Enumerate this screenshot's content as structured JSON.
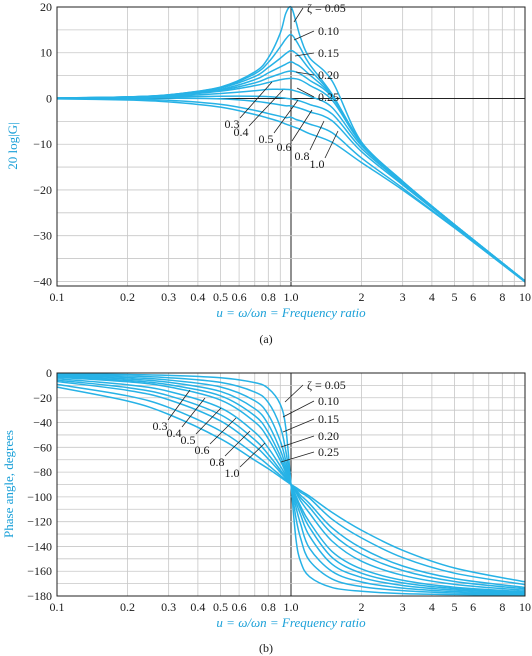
{
  "colors": {
    "curve": "#27b2e6",
    "axis_label": "#1aa0d8",
    "grid": "#c7c7c7"
  },
  "chart_data": [
    {
      "type": "line",
      "panel_label": "(a)",
      "ylabel": "20 log|G|",
      "xlabel": "u = ω/ωn = Frequency ratio",
      "xscale": "log",
      "xlim": [
        0.1,
        10
      ],
      "ylim": [
        -41,
        20
      ],
      "grid": true,
      "x_ticks": [
        0.1,
        0.2,
        0.3,
        0.4,
        0.5,
        0.6,
        0.8,
        1.0,
        2,
        3,
        4,
        5,
        6,
        8,
        10
      ],
      "x_tick_labels": [
        "0.1",
        "0.2",
        "0.3",
        "0.4",
        "0.5",
        "0.6",
        "0.8",
        "1.0",
        "2",
        "3",
        "4",
        "5",
        "6",
        "8",
        "10"
      ],
      "y_ticks": [
        20,
        10,
        0,
        -10,
        -20,
        -30,
        -40
      ],
      "y_tick_labels": [
        "20",
        "10",
        "0",
        "−10",
        "−20",
        "−30",
        "−40"
      ],
      "zeta_labels_upper": [
        "ζ = 0.05",
        "0.10",
        "0.15",
        "0.20",
        "0.25"
      ],
      "zeta_labels_lower": [
        "0.3",
        "0.4",
        "0.5",
        "0.6",
        "0.8",
        "1.0"
      ],
      "series": [
        {
          "zeta": 0.05,
          "x": [
            0.1,
            0.2,
            0.3,
            0.5,
            0.7,
            0.8,
            0.9,
            0.95,
            1.0,
            1.05,
            1.1,
            1.2,
            1.5,
            2,
            3,
            5,
            10
          ],
          "y": [
            0.09,
            0.35,
            0.82,
            2.5,
            5.8,
            8.9,
            14.3,
            18.6,
            20.0,
            16.8,
            13.2,
            8.9,
            3.8,
            -9.5,
            -18.1,
            -27.6,
            -39.9
          ]
        },
        {
          "zeta": 0.1,
          "x": [
            0.1,
            0.2,
            0.3,
            0.5,
            0.7,
            0.8,
            0.9,
            0.95,
            1.0,
            1.05,
            1.1,
            1.2,
            1.5,
            2,
            3,
            5,
            10
          ],
          "y": [
            0.09,
            0.34,
            0.8,
            2.4,
            5.4,
            7.9,
            11.3,
            13.0,
            14.0,
            12.7,
            10.9,
            7.5,
            0.9,
            -9.6,
            -18.1,
            -27.6,
            -39.9
          ]
        },
        {
          "zeta": 0.15,
          "x": [
            0.1,
            0.2,
            0.3,
            0.5,
            0.7,
            0.8,
            0.9,
            0.95,
            1.0,
            1.05,
            1.1,
            1.2,
            1.5,
            2,
            3,
            5,
            10
          ],
          "y": [
            0.08,
            0.33,
            0.77,
            2.3,
            4.8,
            6.8,
            8.8,
            9.8,
            10.5,
            9.9,
            8.9,
            6.4,
            0.7,
            -9.7,
            -18.2,
            -27.6,
            -39.9
          ]
        },
        {
          "zeta": 0.2,
          "x": [
            0.1,
            0.2,
            0.3,
            0.5,
            0.7,
            0.8,
            0.9,
            0.95,
            1.0,
            1.05,
            1.1,
            1.2,
            1.5,
            2,
            3,
            5,
            10
          ],
          "y": [
            0.08,
            0.32,
            0.72,
            2.0,
            4.1,
            5.6,
            6.9,
            7.5,
            8.0,
            7.5,
            6.9,
            5.2,
            0.5,
            -9.7,
            -18.2,
            -27.6,
            -39.9
          ]
        },
        {
          "zeta": 0.25,
          "x": [
            0.1,
            0.2,
            0.3,
            0.5,
            0.7,
            0.8,
            0.9,
            0.95,
            1.0,
            1.05,
            1.1,
            1.2,
            1.5,
            2,
            3,
            5,
            10
          ],
          "y": [
            0.08,
            0.3,
            0.67,
            1.8,
            3.4,
            4.5,
            5.4,
            5.8,
            6.0,
            5.8,
            5.3,
            4.0,
            0.3,
            -9.8,
            -18.2,
            -27.6,
            -39.9
          ]
        },
        {
          "zeta": 0.3,
          "x": [
            0.1,
            0.2,
            0.3,
            0.5,
            0.7,
            0.8,
            0.9,
            0.95,
            1.0,
            1.05,
            1.1,
            1.2,
            1.5,
            2,
            3,
            5,
            10
          ],
          "y": [
            0.07,
            0.28,
            0.61,
            1.6,
            2.8,
            3.5,
            4.1,
            4.3,
            4.4,
            4.3,
            4.0,
            2.9,
            -0.4,
            -9.9,
            -18.3,
            -27.6,
            -39.9
          ]
        },
        {
          "zeta": 0.4,
          "x": [
            0.1,
            0.2,
            0.3,
            0.5,
            0.7,
            0.8,
            0.9,
            0.95,
            1.0,
            1.05,
            1.1,
            1.2,
            1.5,
            2,
            3,
            5,
            10
          ],
          "y": [
            0.05,
            0.22,
            0.47,
            1.1,
            1.7,
            2.0,
            2.0,
            2.0,
            1.9,
            1.6,
            1.3,
            0.5,
            -2.0,
            -10.3,
            -18.4,
            -27.7,
            -39.9
          ]
        },
        {
          "zeta": 0.5,
          "x": [
            0.1,
            0.2,
            0.3,
            0.5,
            0.7,
            0.8,
            0.9,
            0.95,
            1.0,
            1.05,
            1.1,
            1.2,
            1.5,
            2,
            3,
            5,
            10
          ],
          "y": [
            0.03,
            0.14,
            0.3,
            0.5,
            0.5,
            0.4,
            0.2,
            0.05,
            -0.1,
            -0.3,
            -0.6,
            -1.3,
            -3.4,
            -10.9,
            -18.6,
            -27.8,
            -40.0
          ]
        },
        {
          "zeta": 0.6,
          "x": [
            0.1,
            0.2,
            0.3,
            0.5,
            0.7,
            0.8,
            0.9,
            0.95,
            1.0,
            1.05,
            1.1,
            1.2,
            1.5,
            2,
            3,
            5,
            10
          ],
          "y": [
            0.01,
            0.04,
            0.07,
            -0.1,
            -0.6,
            -1.0,
            -1.4,
            -1.6,
            -1.6,
            -1.9,
            -2.2,
            -2.9,
            -4.9,
            -11.6,
            -18.9,
            -27.9,
            -40.0
          ]
        },
        {
          "zeta": 0.8,
          "x": [
            0.1,
            0.2,
            0.3,
            0.5,
            0.7,
            0.8,
            0.9,
            0.95,
            1.0,
            1.05,
            1.1,
            1.2,
            1.5,
            2,
            3,
            5,
            10
          ],
          "y": [
            -0.02,
            -0.16,
            -0.4,
            -1.3,
            -2.6,
            -3.3,
            -3.9,
            -4.2,
            -4.1,
            -4.6,
            -4.9,
            -5.6,
            -7.5,
            -13.0,
            -19.6,
            -28.2,
            -40.1
          ]
        },
        {
          "zeta": 1.0,
          "x": [
            0.1,
            0.2,
            0.3,
            0.5,
            0.7,
            0.8,
            0.9,
            0.95,
            1.0,
            1.05,
            1.1,
            1.2,
            1.5,
            2,
            3,
            5,
            10
          ],
          "y": [
            -0.09,
            -0.34,
            -0.75,
            -1.9,
            -3.5,
            -4.3,
            -5.1,
            -5.6,
            -6.0,
            -6.4,
            -6.8,
            -7.7,
            -9.6,
            -14.0,
            -20.0,
            -28.3,
            -40.1
          ]
        }
      ]
    },
    {
      "type": "line",
      "panel_label": "(b)",
      "ylabel": "Phase angle, degrees",
      "xlabel": "u = ω/ωn = Frequency ratio",
      "xscale": "log",
      "xlim": [
        0.1,
        10
      ],
      "ylim": [
        -180,
        0
      ],
      "grid": true,
      "x_ticks": [
        0.1,
        0.2,
        0.3,
        0.4,
        0.5,
        0.6,
        0.8,
        1.0,
        2,
        3,
        4,
        5,
        6,
        8,
        10
      ],
      "x_tick_labels": [
        "0.1",
        "0.2",
        "0.3",
        "0.4",
        "0.5",
        "0.6",
        "0.8",
        "1.0",
        "2",
        "3",
        "4",
        "5",
        "6",
        "8",
        "10"
      ],
      "y_ticks": [
        0,
        -20,
        -40,
        -60,
        -80,
        -100,
        -120,
        -140,
        -160,
        -180
      ],
      "y_tick_labels": [
        "0",
        "−20",
        "−40",
        "−60",
        "−80",
        "−100",
        "−120",
        "−140",
        "−160",
        "−180"
      ],
      "zeta_labels_upper": [
        "ζ = 0.05",
        "0.10",
        "0.15",
        "0.20",
        "0.25"
      ],
      "zeta_labels_lower": [
        "0.3",
        "0.4",
        "0.5",
        "0.6",
        "0.8",
        "1.0"
      ],
      "series": [
        {
          "zeta": 0.05,
          "x": [
            0.1,
            0.2,
            0.3,
            0.5,
            0.7,
            0.8,
            0.9,
            0.95,
            1.0,
            1.05,
            1.1,
            1.2,
            1.5,
            2,
            3,
            5,
            10
          ],
          "y": [
            -0.6,
            -1.2,
            -1.9,
            -3.8,
            -7.8,
            -12.5,
            -25.3,
            -44.3,
            -90,
            -134.1,
            -152.4,
            -164.4,
            -173.2,
            -176.2,
            -178.1,
            -178.8,
            -179.4
          ]
        },
        {
          "zeta": 0.1,
          "x": [
            0.1,
            0.2,
            0.3,
            0.5,
            0.7,
            0.8,
            0.9,
            0.95,
            1.0,
            1.05,
            1.1,
            1.2,
            1.5,
            2,
            3,
            5,
            10
          ],
          "y": [
            -1.2,
            -2.4,
            -3.8,
            -7.6,
            -15.4,
            -23.9,
            -43.5,
            -62.9,
            -90,
            -117.0,
            -133.6,
            -151.5,
            -166.3,
            -172.4,
            -175.7,
            -177.6,
            -178.8
          ]
        },
        {
          "zeta": 0.15,
          "x": [
            0.1,
            0.2,
            0.3,
            0.5,
            0.7,
            0.8,
            0.9,
            0.95,
            1.0,
            1.05,
            1.1,
            1.2,
            1.5,
            2,
            3,
            5,
            10
          ],
          "y": [
            -1.7,
            -3.6,
            -5.7,
            -11.3,
            -22.4,
            -33.7,
            -54.9,
            -71.0,
            -90,
            -108.3,
            -122.1,
            -141.5,
            -160.2,
            -168.7,
            -173.6,
            -176.4,
            -178.3
          ]
        },
        {
          "zeta": 0.2,
          "x": [
            0.1,
            0.2,
            0.3,
            0.5,
            0.7,
            0.8,
            0.9,
            0.95,
            1.0,
            1.05,
            1.1,
            1.2,
            1.5,
            2,
            3,
            5,
            10
          ],
          "y": [
            -2.3,
            -4.8,
            -7.5,
            -14.9,
            -28.8,
            -41.6,
            -62.1,
            -75.6,
            -90,
            -103.9,
            -114.6,
            -131.6,
            -154.4,
            -165.0,
            -171.5,
            -175.2,
            -177.7
          ]
        },
        {
          "zeta": 0.25,
          "x": [
            0.1,
            0.2,
            0.3,
            0.5,
            0.7,
            0.8,
            0.9,
            0.95,
            1.0,
            1.05,
            1.1,
            1.2,
            1.5,
            2,
            3,
            5,
            10
          ],
          "y": [
            -2.9,
            -6.0,
            -9.4,
            -18.4,
            -34.5,
            -48.0,
            -67.0,
            -78.6,
            -90,
            -100.7,
            -110.2,
            -124.7,
            -149.0,
            -161.6,
            -169.4,
            -174.0,
            -177.1
          ]
        },
        {
          "zeta": 0.3,
          "x": [
            0.1,
            0.2,
            0.3,
            0.5,
            0.7,
            0.8,
            0.9,
            0.95,
            1.0,
            1.05,
            1.1,
            1.2,
            1.5,
            2,
            3,
            5,
            10
          ],
          "y": [
            -3.5,
            -7.1,
            -11.2,
            -21.8,
            -39.5,
            -53.1,
            -70.6,
            -80.5,
            -90,
            -99.2,
            -107.7,
            -120.4,
            -144.2,
            -158.2,
            -167.3,
            -172.9,
            -176.5
          ]
        },
        {
          "zeta": 0.4,
          "x": [
            0.1,
            0.2,
            0.3,
            0.5,
            0.7,
            0.8,
            0.9,
            0.95,
            1.0,
            1.05,
            1.1,
            1.2,
            1.5,
            2,
            3,
            5,
            10
          ],
          "y": [
            -4.6,
            -9.5,
            -14.8,
            -28.1,
            -47.8,
            -60.6,
            -75.1,
            -82.8,
            -90,
            -96.4,
            -103.3,
            -113.2,
            -135.8,
            -151.9,
            -163.3,
            -170.6,
            -175.4
          ]
        },
        {
          "zeta": 0.5,
          "x": [
            0.1,
            0.2,
            0.3,
            0.5,
            0.7,
            0.8,
            0.9,
            0.95,
            1.0,
            1.05,
            1.1,
            1.2,
            1.5,
            2,
            3,
            5,
            10
          ],
          "y": [
            -5.8,
            -11.8,
            -18.3,
            -33.7,
            -53.9,
            -65.8,
            -78.3,
            -84.3,
            -90,
            -95.3,
            -100.8,
            -108.5,
            -129.8,
            -146.3,
            -159.4,
            -168.3,
            -174.2
          ]
        },
        {
          "zeta": 0.6,
          "x": [
            0.1,
            0.2,
            0.3,
            0.5,
            0.7,
            0.8,
            0.9,
            0.95,
            1.0,
            1.05,
            1.1,
            1.2,
            1.5,
            2,
            3,
            5,
            10
          ],
          "y": [
            -6.9,
            -14.0,
            -21.6,
            -38.7,
            -58.8,
            -69.4,
            -80.1,
            -85.2,
            -90,
            -94.3,
            -98.8,
            -105.4,
            -125.1,
            -141.3,
            -155.8,
            -166.0,
            -173.1
          ]
        },
        {
          "zeta": 0.8,
          "x": [
            0.1,
            0.2,
            0.3,
            0.5,
            0.7,
            0.8,
            0.9,
            0.95,
            1.0,
            1.05,
            1.1,
            1.2,
            1.5,
            2,
            3,
            5,
            10
          ],
          "y": [
            -9.2,
            -18.4,
            -27.8,
            -46.8,
            -65.7,
            -74.4,
            -82.7,
            -86.4,
            -90,
            -93.0,
            -96.4,
            -101.0,
            -118.1,
            -133.1,
            -149.0,
            -161.6,
            -170.8
          ]
        },
        {
          "zeta": 1.0,
          "x": [
            0.1,
            0.2,
            0.3,
            0.5,
            0.7,
            0.8,
            0.9,
            0.95,
            1.0,
            1.05,
            1.1,
            1.2,
            1.5,
            2,
            3,
            5,
            10
          ],
          "y": [
            -11.4,
            -22.6,
            -33.4,
            -53.1,
            -70.4,
            -77.3,
            -84.0,
            -87.1,
            -90,
            -92.4,
            -95.0,
            -99.4,
            -112.6,
            -126.9,
            -143.1,
            -157.4,
            -168.6
          ]
        }
      ]
    }
  ]
}
